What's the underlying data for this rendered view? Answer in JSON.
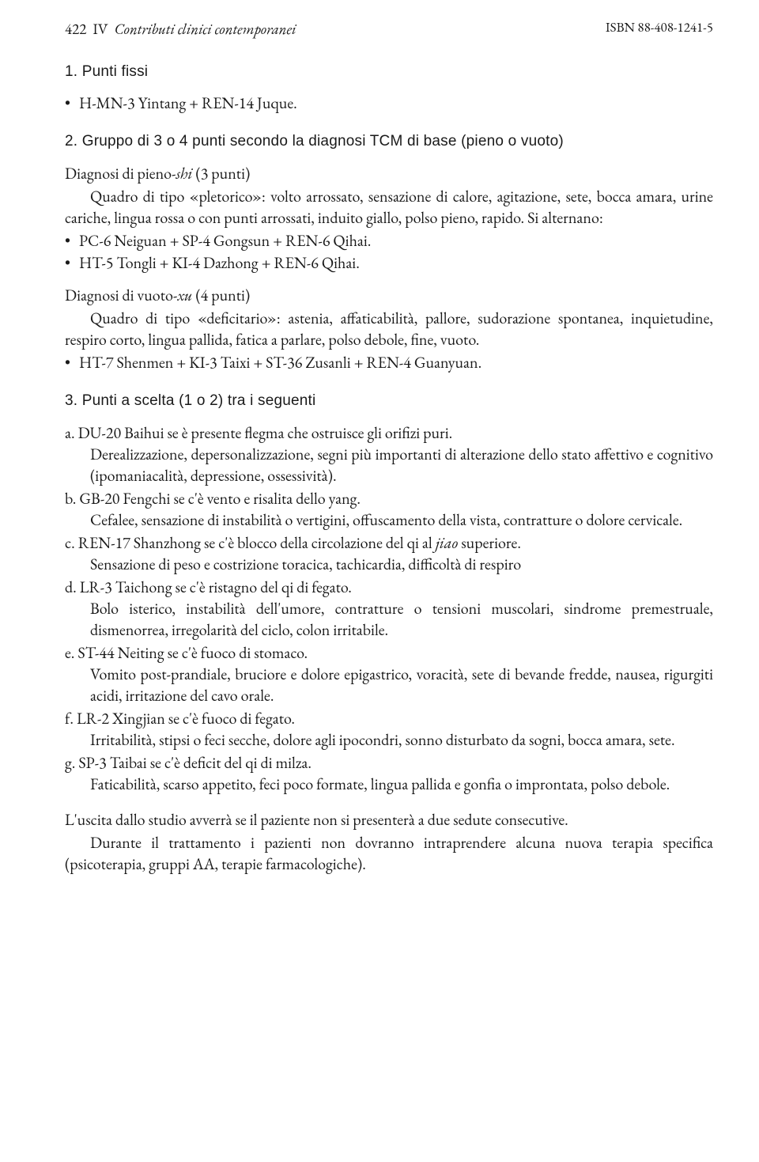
{
  "running_head": {
    "page_number": "422",
    "part_number": "IV",
    "part_title": "Contributi clinici contemporanei",
    "isbn": "ISBN 88-408-1241-5"
  },
  "section1": {
    "heading": "1. Punti fissi",
    "bullet": "H-MN-3 Yintang + REN-14 Juque."
  },
  "section2": {
    "heading": "2. Gruppo di 3 o 4 punti secondo la diagnosi TCM di base (pieno o vuoto)",
    "pieno": {
      "title_pre": "Diagnosi di pieno-",
      "title_it": "shi",
      "title_post": " (3 punti)",
      "para": "Quadro di tipo «pletorico»: volto arrossato, sensazione di calore, agitazione, sete, bocca amara, urine cariche, lingua rossa o con punti arrossati, induito giallo, polso pieno, rapido. Si alternano:",
      "b1": "PC-6 Neiguan + SP-4 Gongsun + REN-6 Qihai.",
      "b2": "HT-5 Tongli + KI-4 Dazhong + REN-6 Qihai."
    },
    "vuoto": {
      "title_pre": "Diagnosi di vuoto-",
      "title_it": "xu",
      "title_post": " (4 punti)",
      "para": "Quadro di tipo «deficitario»: astenia, affaticabilità, pallore, sudorazione spontanea, inquietudine, respiro corto, lingua pallida, fatica a parlare, polso debole, fine, vuoto.",
      "b1": "HT-7 Shenmen + KI-3 Taixi + ST-36 Zusanli + REN-4 Guanyuan."
    }
  },
  "section3": {
    "heading": "3. Punti a scelta (1 o 2) tra i seguenti",
    "items": {
      "a": {
        "label": "a.",
        "title": "DU-20 Baihui se è presente flegma che ostruisce gli orifizi puri.",
        "detail": "Derealizzazione, depersonalizzazione, segni più importanti di alterazione dello stato affettivo e cognitivo (ipomaniacalità, depressione, ossessività)."
      },
      "b": {
        "label": "b.",
        "title": "GB-20 Fengchi se c'è vento e risalita dello yang.",
        "detail": "Cefalee, sensazione di instabilità o vertigini, offuscamento della vista, contratture o dolore cervicale."
      },
      "c": {
        "label": "c.",
        "title_pre": "REN-17 Shanzhong se c'è blocco della circolazione del qi al ",
        "title_it": "jiao",
        "title_post": " superiore.",
        "detail": "Sensazione di peso e costrizione toracica, tachicardia, difficoltà di respiro"
      },
      "d": {
        "label": "d.",
        "title": "LR-3 Taichong se c'è ristagno del qi di fegato.",
        "detail": "Bolo isterico, instabilità dell'umore, contratture o tensioni muscolari, sindrome premestruale, dismenorrea, irregolarità del ciclo, colon irritabile."
      },
      "e": {
        "label": "e.",
        "title": "ST-44 Neiting se c'è fuoco di stomaco.",
        "detail": "Vomito post-prandiale, bruciore e dolore epigastrico, voracità, sete di bevande fredde, nausea, rigurgiti acidi, irritazione del cavo orale."
      },
      "f": {
        "label": "f.",
        "title": "LR-2 Xingjian se c'è fuoco di fegato.",
        "detail": "Irritabilità, stipsi o feci secche, dolore agli ipocondri, sonno disturbato da sogni, bocca amara, sete."
      },
      "g": {
        "label": "g.",
        "title": "SP-3 Taibai se c'è deficit del qi di milza.",
        "detail": "Faticabilità, scarso appetito, feci poco formate, lingua pallida e gonfia o improntata, polso debole."
      }
    }
  },
  "final": {
    "p1": "L'uscita dallo studio avverrà se il paziente non si presenterà a due sedute consecutive.",
    "p2": "Durante il trattamento i pazienti non dovranno intraprendere alcuna nuova terapia specifica (psicoterapia, gruppi AA, terapie farmacologiche)."
  }
}
